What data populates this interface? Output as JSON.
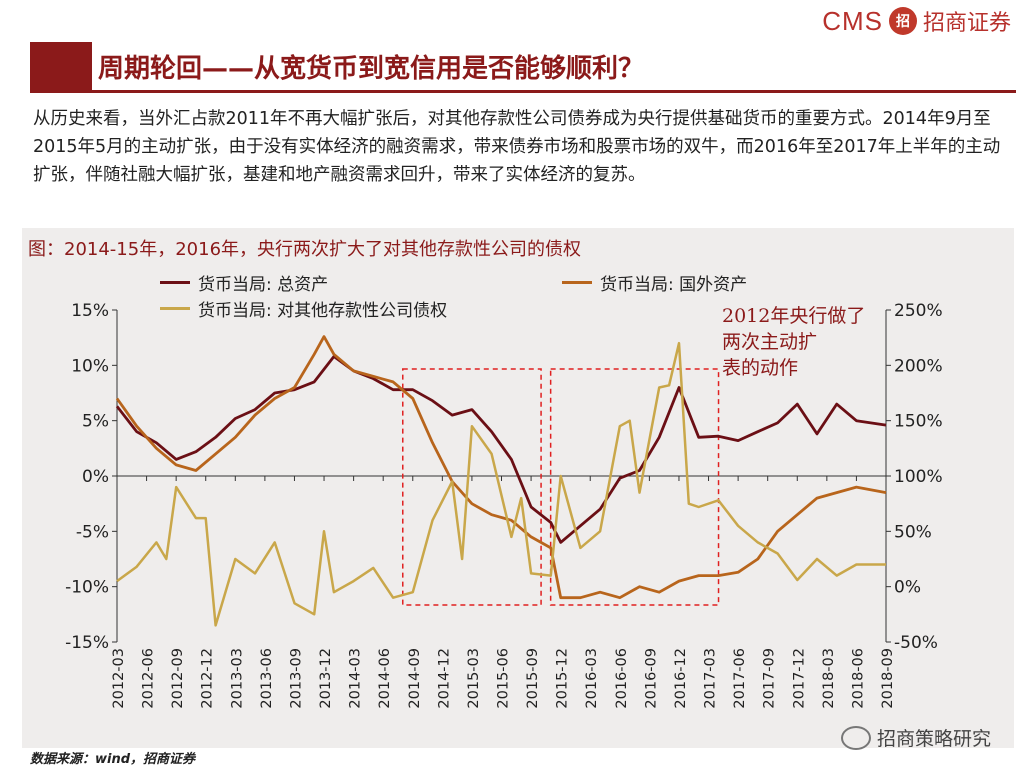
{
  "logo": {
    "brand": "CMS",
    "seal": "招",
    "name": "招商证券"
  },
  "header": {
    "title": "周期轮回——从宽货币到宽信用是否能够顺利？"
  },
  "intro": "从历史来看，当外汇占款2011年不再大幅扩张后，对其他存款性公司债券成为央行提供基础货币的重要方式。2014年9月至2015年5月的主动扩张，由于没有实体经济的融资需求，带来债券市场和股票市场的双牛，而2016年至2017年上半年的主动扩张，伴随社融大幅扩张，基建和地产融资需求回升，带来了实体经济的复苏。",
  "footer": {
    "source": "数据来源：wind，招商证券",
    "watermark": "招商策略研究"
  },
  "colors": {
    "total": "#6b0f15",
    "foreign": "#b8651c",
    "claims": "#c9a74a",
    "box": "#e02020",
    "annotation": "#8b1a1a"
  },
  "chart_data": {
    "type": "line",
    "title": "图：2014-15年，2016年，央行两次扩大了对其他存款性公司的债权",
    "x_tick_labels": [
      "2012-03",
      "2012-06",
      "2012-09",
      "2012-12",
      "2013-03",
      "2013-06",
      "2013-09",
      "2013-12",
      "2014-03",
      "2014-06",
      "2014-09",
      "2014-12",
      "2015-03",
      "2015-06",
      "2015-09",
      "2015-12",
      "2016-03",
      "2016-06",
      "2016-09",
      "2016-12",
      "2017-03",
      "2017-06",
      "2017-09",
      "2017-12",
      "2018-03",
      "2018-06",
      "2018-09"
    ],
    "y_left": {
      "ticks": [
        "15%",
        "10%",
        "5%",
        "0%",
        "-5%",
        "-10%",
        "-15%"
      ],
      "range": [
        -15,
        15
      ]
    },
    "y_right": {
      "ticks": [
        "250%",
        "200%",
        "150%",
        "100%",
        "50%",
        "0%",
        "-50%"
      ],
      "range": [
        -50,
        250
      ]
    },
    "annotation": "2012年央行做了两次主动扩表的动作",
    "highlight_ranges": [
      [
        "2014-09",
        "2015-09"
      ],
      [
        "2015-12",
        "2017-03"
      ]
    ],
    "series": [
      {
        "name": "货币当局: 总资产",
        "axis": "left",
        "x": [
          "2012-03",
          "2012-05",
          "2012-07",
          "2012-09",
          "2012-11",
          "2013-01",
          "2013-03",
          "2013-05",
          "2013-07",
          "2013-09",
          "2013-11",
          "2014-01",
          "2014-03",
          "2014-05",
          "2014-07",
          "2014-09",
          "2014-11",
          "2015-01",
          "2015-03",
          "2015-05",
          "2015-07",
          "2015-09",
          "2015-11",
          "2015-12",
          "2016-02",
          "2016-04",
          "2016-06",
          "2016-08",
          "2016-10",
          "2016-12",
          "2017-02",
          "2017-04",
          "2017-06",
          "2017-08",
          "2017-10",
          "2017-12",
          "2018-02",
          "2018-04",
          "2018-06",
          "2018-09"
        ],
        "values": [
          6.3,
          4.0,
          3.0,
          1.5,
          2.2,
          3.5,
          5.2,
          6.0,
          7.5,
          7.8,
          8.5,
          10.8,
          9.5,
          8.8,
          7.8,
          7.8,
          6.8,
          5.5,
          6.0,
          4.0,
          1.5,
          -2.8,
          -4.2,
          -6.0,
          -4.5,
          -3.0,
          -0.2,
          0.5,
          3.5,
          8.0,
          3.5,
          3.6,
          3.2,
          4.0,
          4.8,
          6.5,
          3.8,
          6.5,
          5.0,
          4.6
        ]
      },
      {
        "name": "货币当局: 国外资产",
        "axis": "left",
        "x": [
          "2012-03",
          "2012-05",
          "2012-07",
          "2012-09",
          "2012-11",
          "2013-01",
          "2013-03",
          "2013-05",
          "2013-07",
          "2013-09",
          "2013-11",
          "2013-12",
          "2014-01",
          "2014-03",
          "2014-05",
          "2014-07",
          "2014-09",
          "2014-11",
          "2015-01",
          "2015-03",
          "2015-05",
          "2015-07",
          "2015-09",
          "2015-11",
          "2015-12",
          "2016-02",
          "2016-04",
          "2016-06",
          "2016-08",
          "2016-10",
          "2016-12",
          "2017-02",
          "2017-04",
          "2017-06",
          "2017-08",
          "2017-10",
          "2017-12",
          "2018-02",
          "2018-04",
          "2018-06",
          "2018-09"
        ],
        "values": [
          7.0,
          4.5,
          2.5,
          1.0,
          0.5,
          2.0,
          3.5,
          5.5,
          7.0,
          8.0,
          11.0,
          12.6,
          11.0,
          9.5,
          9.0,
          8.5,
          7.0,
          3.0,
          -0.5,
          -2.5,
          -3.5,
          -4.0,
          -5.5,
          -6.5,
          -11.0,
          -11.0,
          -10.5,
          -11.0,
          -10.0,
          -10.5,
          -9.5,
          -9.0,
          -9.0,
          -8.7,
          -7.5,
          -5.0,
          -3.5,
          -2.0,
          -1.5,
          -1.0,
          -1.5
        ]
      },
      {
        "name": "货币当局: 对其他存款性公司债权",
        "axis": "right",
        "x": [
          "2012-03",
          "2012-05",
          "2012-07",
          "2012-08",
          "2012-09",
          "2012-11",
          "2012-12",
          "2013-01",
          "2013-03",
          "2013-05",
          "2013-07",
          "2013-09",
          "2013-11",
          "2013-12",
          "2014-01",
          "2014-03",
          "2014-05",
          "2014-07",
          "2014-09",
          "2014-11",
          "2015-01",
          "2015-02",
          "2015-03",
          "2015-05",
          "2015-07",
          "2015-08",
          "2015-09",
          "2015-11",
          "2015-12",
          "2016-02",
          "2016-04",
          "2016-06",
          "2016-07",
          "2016-08",
          "2016-10",
          "2016-11",
          "2016-12",
          "2017-01",
          "2017-02",
          "2017-04",
          "2017-06",
          "2017-08",
          "2017-10",
          "2017-12",
          "2018-02",
          "2018-04",
          "2018-06",
          "2018-09"
        ],
        "values": [
          5,
          18,
          40,
          25,
          90,
          62,
          62,
          -35,
          25,
          12,
          40,
          -15,
          -25,
          50,
          -5,
          5,
          17,
          -10,
          -5,
          60,
          95,
          25,
          145,
          120,
          45,
          80,
          12,
          10,
          100,
          35,
          50,
          145,
          150,
          85,
          180,
          182,
          220,
          75,
          72,
          78,
          55,
          40,
          30,
          6,
          25,
          10,
          20,
          20
        ]
      }
    ]
  }
}
